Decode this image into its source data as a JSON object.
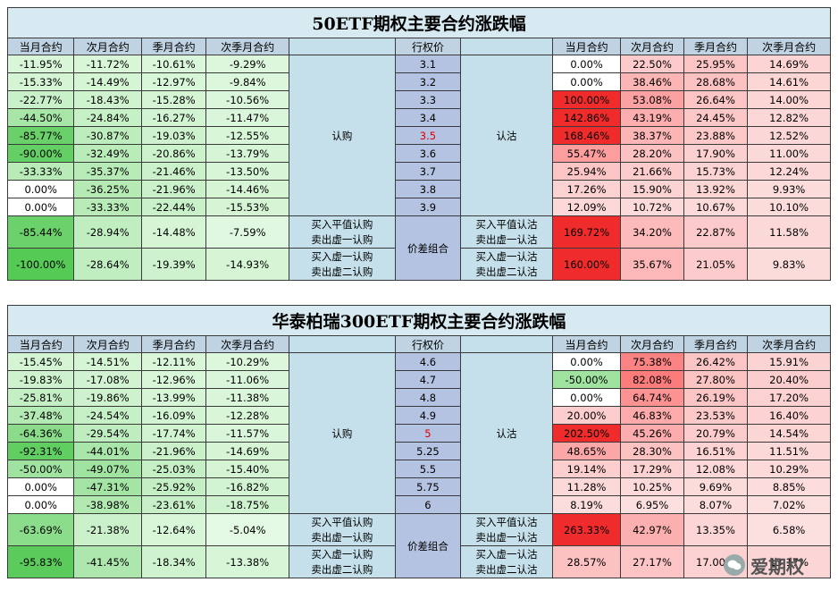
{
  "tables": [
    {
      "title": "50ETF期权主要合约涨跌幅",
      "headers": [
        "当月合约",
        "次月合约",
        "季月合约",
        "次季月合约",
        "",
        "行权价",
        "",
        "当月合约",
        "次月合约",
        "季月合约",
        "次季月合约"
      ],
      "call_label": "认购",
      "put_label": "认沽",
      "spread_label": "价差组合",
      "atm_index": 4,
      "rows": [
        {
          "strike": "3.1",
          "call": [
            "-11.95%",
            "-11.72%",
            "-10.61%",
            "-9.29%"
          ],
          "put": [
            "0.00%",
            "22.50%",
            "25.95%",
            "14.69%"
          ]
        },
        {
          "strike": "3.2",
          "call": [
            "-15.33%",
            "-14.49%",
            "-12.97%",
            "-9.84%"
          ],
          "put": [
            "0.00%",
            "38.46%",
            "28.68%",
            "14.61%"
          ]
        },
        {
          "strike": "3.3",
          "call": [
            "-22.77%",
            "-18.43%",
            "-15.28%",
            "-10.56%"
          ],
          "put": [
            "100.00%",
            "53.08%",
            "26.64%",
            "14.00%"
          ]
        },
        {
          "strike": "3.4",
          "call": [
            "-44.50%",
            "-24.84%",
            "-16.27%",
            "-11.47%"
          ],
          "put": [
            "142.86%",
            "43.19%",
            "24.45%",
            "12.82%"
          ]
        },
        {
          "strike": "3.5",
          "call": [
            "-85.77%",
            "-30.87%",
            "-19.03%",
            "-12.55%"
          ],
          "put": [
            "168.46%",
            "38.37%",
            "23.88%",
            "12.52%"
          ]
        },
        {
          "strike": "3.6",
          "call": [
            "-90.00%",
            "-32.49%",
            "-20.86%",
            "-13.79%"
          ],
          "put": [
            "55.47%",
            "28.20%",
            "17.90%",
            "11.00%"
          ]
        },
        {
          "strike": "3.7",
          "call": [
            "-33.33%",
            "-35.37%",
            "-21.46%",
            "-13.50%"
          ],
          "put": [
            "25.94%",
            "21.66%",
            "15.73%",
            "12.24%"
          ]
        },
        {
          "strike": "3.8",
          "call": [
            "0.00%",
            "-36.25%",
            "-21.96%",
            "-14.46%"
          ],
          "put": [
            "17.26%",
            "15.90%",
            "13.92%",
            "9.93%"
          ]
        },
        {
          "strike": "3.9",
          "call": [
            "0.00%",
            "-33.33%",
            "-22.44%",
            "-15.53%"
          ],
          "put": [
            "12.09%",
            "10.72%",
            "10.67%",
            "10.10%"
          ]
        }
      ],
      "spreads": [
        {
          "call": [
            "-85.44%",
            "-28.94%",
            "-14.48%",
            "-7.59%"
          ],
          "call_desc": [
            "买入平值认购",
            "卖出虚一认购"
          ],
          "put_desc": [
            "买入平值认沽",
            "卖出虚一认沽"
          ],
          "put": [
            "169.72%",
            "34.20%",
            "22.87%",
            "11.58%"
          ]
        },
        {
          "call": [
            "-100.00%",
            "-28.64%",
            "-19.39%",
            "-14.93%"
          ],
          "call_desc": [
            "买入虚一认购",
            "卖出虚二认购"
          ],
          "put_desc": [
            "买入虚一认沽",
            "卖出虚二认沽"
          ],
          "put": [
            "160.00%",
            "35.67%",
            "21.05%",
            "9.83%"
          ]
        }
      ]
    },
    {
      "title": "华泰柏瑞300ETF期权主要合约涨跌幅",
      "headers": [
        "当月合约",
        "次月合约",
        "季月合约",
        "次季月合约",
        "",
        "行权价",
        "",
        "当月合约",
        "次月合约",
        "季月合约",
        "次季月合约"
      ],
      "call_label": "认购",
      "put_label": "认沽",
      "spread_label": "价差组合",
      "atm_index": 4,
      "rows": [
        {
          "strike": "4.6",
          "call": [
            "-15.45%",
            "-14.51%",
            "-12.11%",
            "-10.29%"
          ],
          "put": [
            "0.00%",
            "75.38%",
            "26.42%",
            "15.91%"
          ]
        },
        {
          "strike": "4.7",
          "call": [
            "-19.83%",
            "-17.08%",
            "-12.96%",
            "-11.06%"
          ],
          "put": [
            "-50.00%",
            "82.08%",
            "27.80%",
            "20.40%"
          ]
        },
        {
          "strike": "4.8",
          "call": [
            "-25.81%",
            "-19.86%",
            "-13.99%",
            "-11.38%"
          ],
          "put": [
            "0.00%",
            "64.74%",
            "26.19%",
            "17.20%"
          ]
        },
        {
          "strike": "4.9",
          "call": [
            "-37.48%",
            "-24.54%",
            "-16.09%",
            "-12.28%"
          ],
          "put": [
            "20.00%",
            "46.83%",
            "23.53%",
            "16.40%"
          ]
        },
        {
          "strike": "5",
          "call": [
            "-64.36%",
            "-29.54%",
            "-17.74%",
            "-11.57%"
          ],
          "put": [
            "202.50%",
            "45.26%",
            "20.79%",
            "14.54%"
          ]
        },
        {
          "strike": "5.25",
          "call": [
            "-92.31%",
            "-44.01%",
            "-21.96%",
            "-14.69%"
          ],
          "put": [
            "48.65%",
            "28.30%",
            "16.51%",
            "11.51%"
          ]
        },
        {
          "strike": "5.5",
          "call": [
            "-50.00%",
            "-49.07%",
            "-25.03%",
            "-15.40%"
          ],
          "put": [
            "19.14%",
            "17.29%",
            "12.08%",
            "10.29%"
          ]
        },
        {
          "strike": "5.75",
          "call": [
            "0.00%",
            "-47.31%",
            "-25.92%",
            "-16.82%"
          ],
          "put": [
            "11.28%",
            "10.25%",
            "9.69%",
            "8.85%"
          ]
        },
        {
          "strike": "6",
          "call": [
            "0.00%",
            "-38.98%",
            "-23.61%",
            "-18.75%"
          ],
          "put": [
            "8.19%",
            "6.95%",
            "8.07%",
            "7.02%"
          ]
        }
      ],
      "spreads": [
        {
          "call": [
            "-63.69%",
            "-21.38%",
            "-12.64%",
            "-5.04%"
          ],
          "call_desc": [
            "买入平值认购",
            "卖出虚一认购"
          ],
          "put_desc": [
            "买入平值认沽",
            "卖出虚一认沽"
          ],
          "put": [
            "263.33%",
            "42.97%",
            "13.35%",
            "6.58%"
          ]
        },
        {
          "call": [
            "-95.83%",
            "-41.45%",
            "-18.34%",
            "-13.38%"
          ],
          "call_desc": [
            "买入虚一认购",
            "卖出虚二认购"
          ],
          "put_desc": [
            "买入虚一认沽",
            "卖出虚二认沽"
          ],
          "put": [
            "28.57%",
            "27.17%",
            "17.00%",
            "13.17%"
          ]
        }
      ]
    }
  ],
  "watermark": {
    "text": "爱期权",
    "icon": "wechat-icon"
  }
}
